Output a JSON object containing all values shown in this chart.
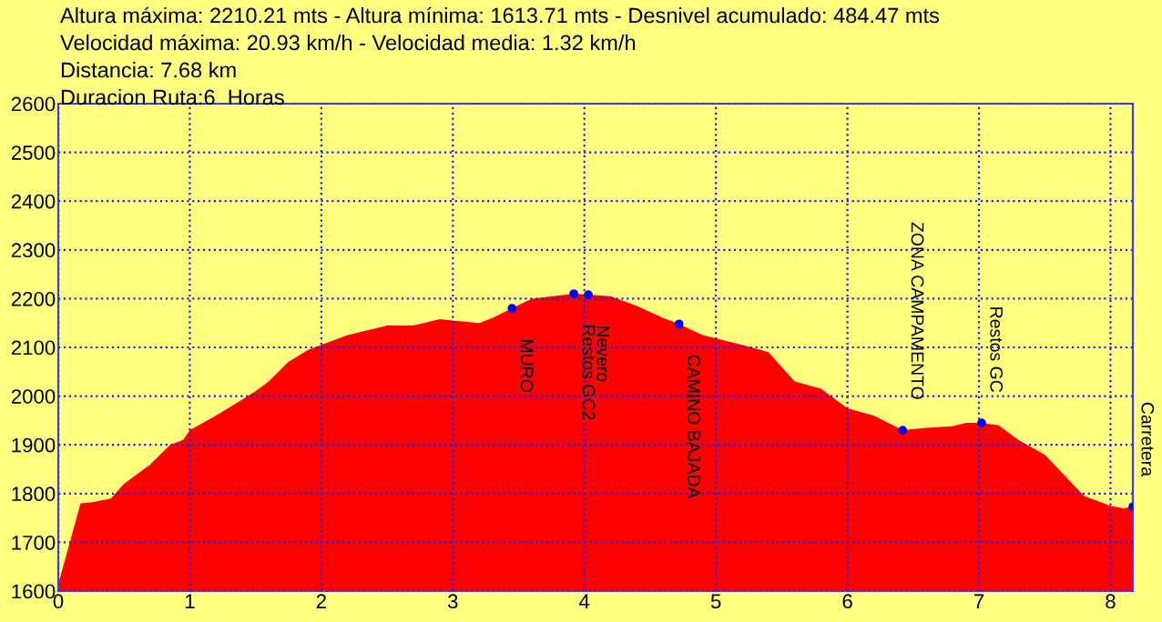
{
  "chart_data": {
    "type": "area",
    "annotations": [
      "Altura máxima: 2210.21 mts - Altura mínima: 1613.71 mts - Desnivel acumulado: 484.47 mts",
      "Velocidad máxima: 20.93 km/h - Velocidad media: 1.32 km/h",
      "Distancia: 7.68 km",
      "Duracion Ruta:6  Horas",
      {
        "text": "MURO",
        "x": 3.45,
        "y": 2180
      },
      {
        "text": "Restos GC2",
        "x": 3.92,
        "y": 2210
      },
      {
        "text": "Nevero",
        "x": 4.03,
        "y": 2208
      },
      {
        "text": "CAMINO BAJADA",
        "x": 4.72,
        "y": 2148
      },
      {
        "text": "ZONA CAMPAMENTO",
        "x": 6.42,
        "y": 1930
      },
      {
        "text": "Restos GC",
        "x": 7.02,
        "y": 1945
      },
      {
        "text": "Carretera",
        "x": 8.17,
        "y": 1773
      }
    ],
    "x": [
      0,
      0.17,
      0.25,
      0.4,
      0.5,
      0.7,
      0.85,
      0.95,
      1.0,
      1.2,
      1.5,
      1.6,
      1.75,
      1.9,
      2.0,
      2.2,
      2.5,
      2.7,
      2.9,
      3.0,
      3.2,
      3.3,
      3.45,
      3.6,
      3.92,
      4.03,
      4.2,
      4.4,
      4.6,
      4.72,
      4.9,
      5.2,
      5.4,
      5.5,
      5.6,
      5.8,
      6.0,
      6.2,
      6.42,
      6.6,
      6.8,
      6.9,
      7.02,
      7.15,
      7.3,
      7.5,
      7.8,
      8.0,
      8.1,
      8.17
    ],
    "series": [
      {
        "color": "#ff0000",
        "values": [
          1614,
          1780,
          1782,
          1790,
          1820,
          1860,
          1900,
          1910,
          1930,
          1960,
          2010,
          2030,
          2070,
          2095,
          2105,
          2125,
          2145,
          2145,
          2158,
          2155,
          2150,
          2160,
          2180,
          2200,
          2210,
          2208,
          2205,
          2185,
          2160,
          2148,
          2125,
          2105,
          2090,
          2060,
          2030,
          2015,
          1975,
          1960,
          1930,
          1935,
          1938,
          1945,
          1945,
          1940,
          1910,
          1880,
          1795,
          1775,
          1770,
          1773
        ]
      }
    ],
    "xlim": [
      0,
      8.17
    ],
    "ylim": [
      1600,
      2600
    ],
    "xticks": [
      0,
      1,
      2,
      3,
      4,
      5,
      6,
      7,
      8
    ],
    "yticks": [
      1600,
      1700,
      1800,
      1900,
      2000,
      2100,
      2200,
      2300,
      2400,
      2500,
      2600
    ],
    "grid": true,
    "line_style": "dotted"
  }
}
